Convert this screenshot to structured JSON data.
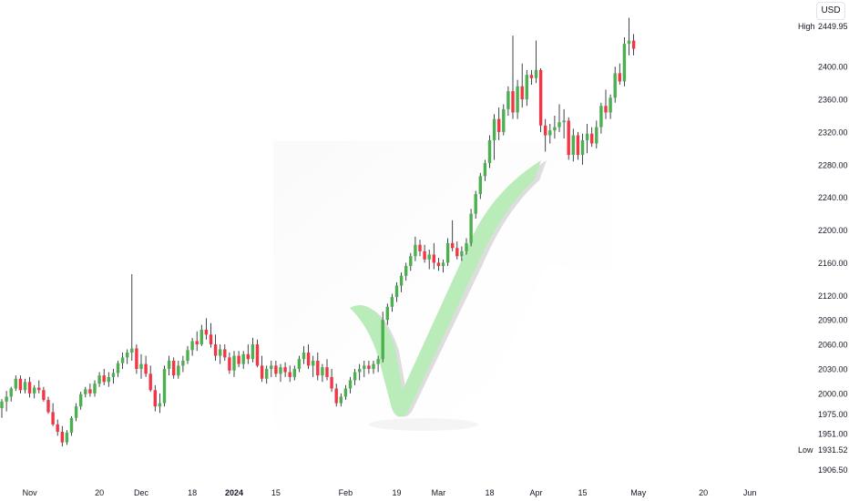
{
  "currency": "USD",
  "colors": {
    "up": "#4caf50",
    "down": "#f23645",
    "wick": "#131722",
    "text": "#131722",
    "check": "#b9ecb8"
  },
  "icons": [
    "checkmark-icon"
  ],
  "chart_data": {
    "type": "candlestick",
    "title": "",
    "xlabel": "",
    "ylabel": "",
    "ylim": [
      1895,
      2475
    ],
    "grid": false,
    "y_ticks": [
      "2400.00",
      "2360.00",
      "2320.00",
      "2280.00",
      "2240.00",
      "2200.00",
      "2160.00",
      "2120.00",
      "2090.00",
      "2060.00",
      "2030.00",
      "2000.00",
      "1975.00",
      "1951.00",
      "1906.50"
    ],
    "high_label": {
      "text": "High",
      "value": "2449.95"
    },
    "low_label": {
      "text": "Low",
      "value": "1931.52"
    },
    "x_ticks": [
      {
        "label": "Nov",
        "i": 6,
        "bold": false
      },
      {
        "label": "20",
        "i": 21,
        "bold": false
      },
      {
        "label": "Dec",
        "i": 30,
        "bold": false
      },
      {
        "label": "18",
        "i": 41,
        "bold": false
      },
      {
        "label": "2024",
        "i": 50,
        "bold": true
      },
      {
        "label": "15",
        "i": 59,
        "bold": false
      },
      {
        "label": "Feb",
        "i": 74,
        "bold": false
      },
      {
        "label": "19",
        "i": 85,
        "bold": false
      },
      {
        "label": "Mar",
        "i": 94,
        "bold": false
      },
      {
        "label": "18",
        "i": 105,
        "bold": false
      },
      {
        "label": "Apr",
        "i": 115,
        "bold": false
      },
      {
        "label": "15",
        "i": 125,
        "bold": false
      },
      {
        "label": "May",
        "i": 137,
        "bold": false
      },
      {
        "label": "20",
        "i": 151,
        "bold": false
      },
      {
        "label": "Jun",
        "i": 161,
        "bold": false
      }
    ],
    "candles": [
      [
        1982,
        1993,
        1970,
        1990
      ],
      [
        1990,
        2003,
        1978,
        1996
      ],
      [
        1996,
        2008,
        1990,
        2006
      ],
      [
        2006,
        2022,
        2003,
        2018
      ],
      [
        2018,
        2022,
        2000,
        2004
      ],
      [
        2004,
        2018,
        2000,
        2014
      ],
      [
        2014,
        2020,
        1995,
        2000
      ],
      [
        2000,
        2010,
        1994,
        2007
      ],
      [
        2007,
        2016,
        2000,
        2004
      ],
      [
        2004,
        2008,
        1990,
        1992
      ],
      [
        1992,
        1996,
        1975,
        1977
      ],
      [
        1977,
        1988,
        1960,
        1962
      ],
      [
        1962,
        1968,
        1948,
        1953
      ],
      [
        1953,
        1960,
        1935,
        1940
      ],
      [
        1940,
        1955,
        1937,
        1952
      ],
      [
        1952,
        1972,
        1948,
        1970
      ],
      [
        1970,
        1988,
        1966,
        1984
      ],
      [
        1984,
        2002,
        1980,
        1999
      ],
      [
        1999,
        2008,
        1995,
        2005
      ],
      [
        2005,
        2012,
        1996,
        2000
      ],
      [
        2000,
        2016,
        1996,
        2012
      ],
      [
        2012,
        2026,
        2008,
        2022
      ],
      [
        2022,
        2030,
        2010,
        2014
      ],
      [
        2014,
        2026,
        2008,
        2020
      ],
      [
        2020,
        2030,
        2012,
        2025
      ],
      [
        2025,
        2040,
        2020,
        2037
      ],
      [
        2037,
        2050,
        2030,
        2044
      ],
      [
        2044,
        2054,
        2036,
        2050
      ],
      [
        2050,
        2146,
        2040,
        2055
      ],
      [
        2055,
        2060,
        2024,
        2030
      ],
      [
        2030,
        2048,
        2018,
        2036
      ],
      [
        2036,
        2046,
        2020,
        2024
      ],
      [
        2024,
        2034,
        2002,
        2004
      ],
      [
        2004,
        2010,
        1978,
        1984
      ],
      [
        1984,
        2000,
        1976,
        1988
      ],
      [
        1988,
        2034,
        1984,
        2030
      ],
      [
        2030,
        2046,
        2022,
        2040
      ],
      [
        2040,
        2044,
        2018,
        2022
      ],
      [
        2022,
        2040,
        2018,
        2034
      ],
      [
        2034,
        2046,
        2026,
        2040
      ],
      [
        2040,
        2058,
        2036,
        2053
      ],
      [
        2053,
        2068,
        2046,
        2064
      ],
      [
        2064,
        2076,
        2052,
        2060
      ],
      [
        2060,
        2084,
        2058,
        2078
      ],
      [
        2078,
        2092,
        2066,
        2072
      ],
      [
        2072,
        2086,
        2056,
        2060
      ],
      [
        2060,
        2072,
        2040,
        2046
      ],
      [
        2046,
        2060,
        2036,
        2054
      ],
      [
        2054,
        2060,
        2040,
        2044
      ],
      [
        2044,
        2050,
        2024,
        2028
      ],
      [
        2028,
        2052,
        2020,
        2046
      ],
      [
        2046,
        2052,
        2032,
        2036
      ],
      [
        2036,
        2052,
        2030,
        2048
      ],
      [
        2048,
        2060,
        2036,
        2042
      ],
      [
        2042,
        2068,
        2038,
        2060
      ],
      [
        2060,
        2066,
        2032,
        2034
      ],
      [
        2034,
        2046,
        2014,
        2018
      ],
      [
        2018,
        2034,
        2012,
        2030
      ],
      [
        2030,
        2040,
        2020,
        2034
      ],
      [
        2034,
        2040,
        2020,
        2024
      ],
      [
        2024,
        2036,
        2014,
        2032
      ],
      [
        2032,
        2038,
        2020,
        2026
      ],
      [
        2026,
        2034,
        2014,
        2020
      ],
      [
        2020,
        2034,
        2016,
        2030
      ],
      [
        2030,
        2046,
        2026,
        2042
      ],
      [
        2042,
        2058,
        2036,
        2050
      ],
      [
        2050,
        2060,
        2030,
        2034
      ],
      [
        2034,
        2046,
        2020,
        2040
      ],
      [
        2040,
        2050,
        2016,
        2022
      ],
      [
        2022,
        2036,
        2014,
        2032
      ],
      [
        2032,
        2042,
        2016,
        2020
      ],
      [
        2020,
        2030,
        2002,
        2006
      ],
      [
        2006,
        2012,
        1984,
        1988
      ],
      [
        1988,
        2000,
        1984,
        1996
      ],
      [
        1996,
        2010,
        1992,
        2006
      ],
      [
        2006,
        2020,
        2000,
        2016
      ],
      [
        2016,
        2030,
        2010,
        2026
      ],
      [
        2026,
        2036,
        2016,
        2030
      ],
      [
        2030,
        2040,
        2020,
        2034
      ],
      [
        2034,
        2040,
        2024,
        2030
      ],
      [
        2030,
        2040,
        2024,
        2036
      ],
      [
        2036,
        2046,
        2026,
        2042
      ],
      [
        2042,
        2100,
        2038,
        2090
      ],
      [
        2090,
        2110,
        2084,
        2106
      ],
      [
        2106,
        2122,
        2100,
        2118
      ],
      [
        2118,
        2136,
        2112,
        2132
      ],
      [
        2132,
        2148,
        2124,
        2144
      ],
      [
        2144,
        2160,
        2138,
        2156
      ],
      [
        2156,
        2172,
        2150,
        2168
      ],
      [
        2168,
        2192,
        2162,
        2182
      ],
      [
        2182,
        2188,
        2168,
        2174
      ],
      [
        2174,
        2182,
        2160,
        2164
      ],
      [
        2164,
        2176,
        2152,
        2170
      ],
      [
        2170,
        2184,
        2152,
        2160
      ],
      [
        2160,
        2166,
        2150,
        2156
      ],
      [
        2156,
        2164,
        2148,
        2160
      ],
      [
        2160,
        2190,
        2156,
        2184
      ],
      [
        2184,
        2212,
        2174,
        2178
      ],
      [
        2178,
        2186,
        2164,
        2168
      ],
      [
        2168,
        2180,
        2162,
        2174
      ],
      [
        2174,
        2190,
        2170,
        2184
      ],
      [
        2184,
        2226,
        2180,
        2220
      ],
      [
        2220,
        2248,
        2214,
        2244
      ],
      [
        2244,
        2270,
        2238,
        2266
      ],
      [
        2266,
        2286,
        2260,
        2282
      ],
      [
        2282,
        2316,
        2276,
        2310
      ],
      [
        2310,
        2342,
        2286,
        2336
      ],
      [
        2336,
        2350,
        2310,
        2320
      ],
      [
        2320,
        2354,
        2316,
        2348
      ],
      [
        2348,
        2376,
        2340,
        2370
      ],
      [
        2370,
        2438,
        2336,
        2344
      ],
      [
        2344,
        2384,
        2336,
        2376
      ],
      [
        2376,
        2404,
        2350,
        2360
      ],
      [
        2360,
        2396,
        2352,
        2390
      ],
      [
        2390,
        2396,
        2378,
        2386
      ],
      [
        2386,
        2432,
        2380,
        2396
      ],
      [
        2396,
        2398,
        2320,
        2328
      ],
      [
        2328,
        2336,
        2296,
        2316
      ],
      [
        2316,
        2330,
        2306,
        2322
      ],
      [
        2322,
        2340,
        2312,
        2326
      ],
      [
        2326,
        2354,
        2320,
        2332
      ],
      [
        2332,
        2348,
        2312,
        2334
      ],
      [
        2334,
        2338,
        2286,
        2292
      ],
      [
        2292,
        2324,
        2284,
        2316
      ],
      [
        2316,
        2320,
        2286,
        2292
      ],
      [
        2292,
        2318,
        2280,
        2310
      ],
      [
        2310,
        2330,
        2294,
        2318
      ],
      [
        2318,
        2326,
        2302,
        2306
      ],
      [
        2306,
        2334,
        2300,
        2326
      ],
      [
        2326,
        2356,
        2318,
        2352
      ],
      [
        2352,
        2372,
        2336,
        2344
      ],
      [
        2344,
        2366,
        2336,
        2362
      ],
      [
        2362,
        2400,
        2356,
        2392
      ],
      [
        2392,
        2404,
        2378,
        2382
      ],
      [
        2382,
        2436,
        2376,
        2428
      ],
      [
        2428,
        2460,
        2414,
        2432
      ],
      [
        2432,
        2440,
        2414,
        2422
      ]
    ]
  }
}
